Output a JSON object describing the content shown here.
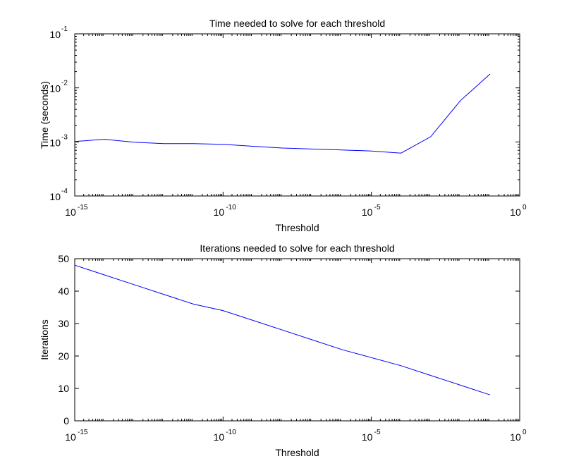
{
  "chart_data": [
    {
      "type": "line",
      "title": "Time needed to solve for each threshold",
      "xlabel": "Threshold",
      "ylabel": "Time (seconds)",
      "xscale": "log",
      "yscale": "log",
      "xlim": [
        1e-15,
        1
      ],
      "ylim": [
        0.0001,
        0.1
      ],
      "x_ticks": [
        {
          "base": "10",
          "exp": "-15",
          "value": 1e-15
        },
        {
          "base": "10",
          "exp": "-10",
          "value": 1e-10
        },
        {
          "base": "10",
          "exp": "-5",
          "value": 1e-05
        },
        {
          "base": "10",
          "exp": "0",
          "value": 1
        }
      ],
      "y_ticks": [
        {
          "base": "10",
          "exp": "-4",
          "value": 0.0001
        },
        {
          "base": "10",
          "exp": "-3",
          "value": 0.001
        },
        {
          "base": "10",
          "exp": "-2",
          "value": 0.01
        },
        {
          "base": "10",
          "exp": "-1",
          "value": 0.1
        }
      ],
      "grid": false,
      "line_color": "#0000ff",
      "series": [
        {
          "x": [
            1e-15,
            1e-14,
            1e-13,
            1e-12,
            1e-11,
            1e-10,
            1e-09,
            1e-08,
            1e-07,
            1e-06,
            1e-05,
            0.0001,
            0.001,
            0.01,
            0.1
          ],
          "y": [
            0.00102,
            0.00112,
            0.00099,
            0.00093,
            0.00093,
            0.0009,
            0.00083,
            0.00077,
            0.00074,
            0.00071,
            0.00068,
            0.00062,
            0.00125,
            0.0058,
            0.018
          ]
        }
      ]
    },
    {
      "type": "line",
      "title": "Iterations needed to solve for each threshold",
      "xlabel": "Threshold",
      "ylabel": "Iterations",
      "xscale": "log",
      "yscale": "linear",
      "xlim": [
        1e-15,
        1
      ],
      "ylim": [
        0,
        50
      ],
      "x_ticks": [
        {
          "base": "10",
          "exp": "-15",
          "value": 1e-15
        },
        {
          "base": "10",
          "exp": "-10",
          "value": 1e-10
        },
        {
          "base": "10",
          "exp": "-5",
          "value": 1e-05
        },
        {
          "base": "10",
          "exp": "0",
          "value": 1
        }
      ],
      "y_ticks": [
        {
          "label": "0",
          "value": 0
        },
        {
          "label": "10",
          "value": 10
        },
        {
          "label": "20",
          "value": 20
        },
        {
          "label": "30",
          "value": 30
        },
        {
          "label": "40",
          "value": 40
        },
        {
          "label": "50",
          "value": 50
        }
      ],
      "grid": false,
      "line_color": "#0000ff",
      "series": [
        {
          "x": [
            1e-15,
            1e-14,
            1e-13,
            1e-12,
            1e-11,
            1e-10,
            1e-09,
            1e-08,
            1e-07,
            1e-06,
            1e-05,
            0.0001,
            0.001,
            0.01,
            0.1
          ],
          "y": [
            48,
            45,
            42,
            39,
            36,
            34,
            31,
            28,
            25,
            22,
            19.5,
            17,
            14,
            11,
            8
          ]
        }
      ]
    }
  ]
}
